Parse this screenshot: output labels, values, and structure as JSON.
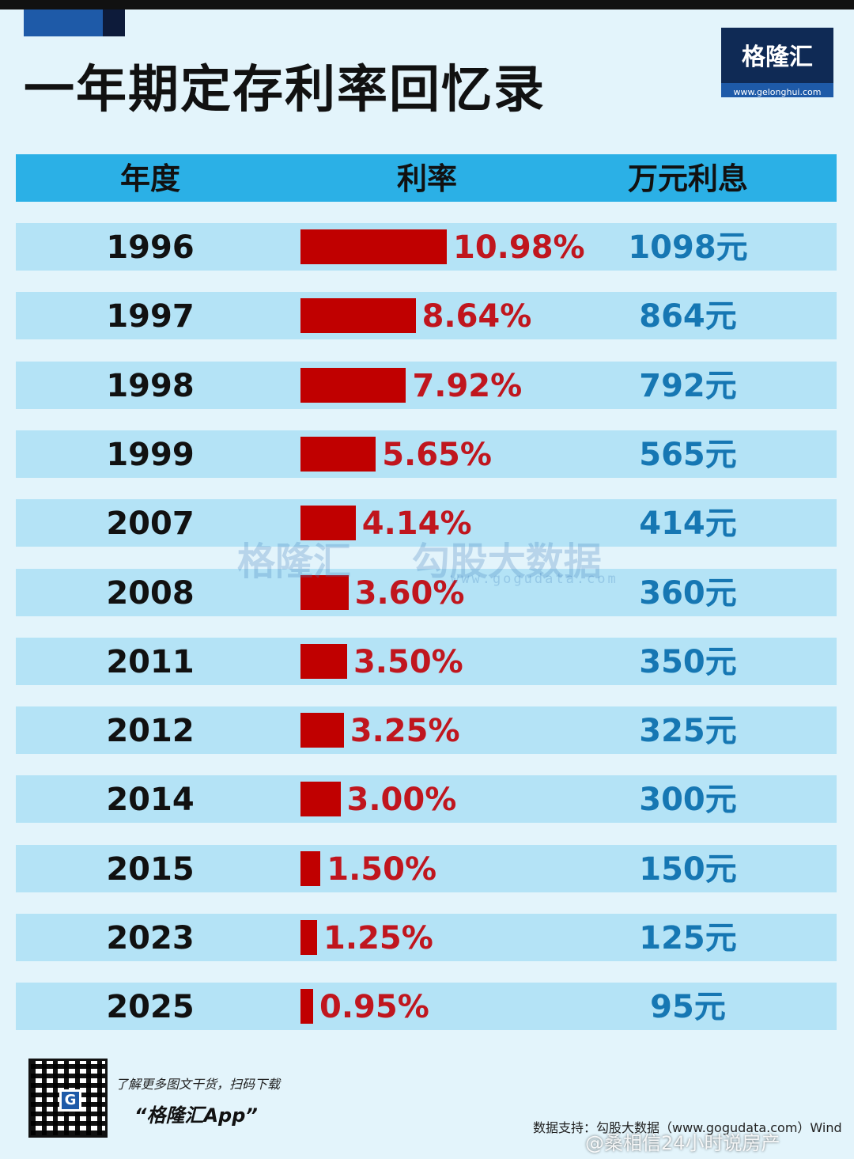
{
  "page": {
    "title": "一年期定存利率回忆录"
  },
  "logo": {
    "name": "格隆汇",
    "url": "www.gelonghui.com"
  },
  "table": {
    "headers": [
      "年度",
      "利率",
      "万元利息"
    ]
  },
  "watermark": {
    "brand": "格隆汇",
    "partner": "勾股大数据",
    "url": "www.gogudata.com"
  },
  "footer": {
    "promo_line": "了解更多图文干货，扫码下载",
    "promo_app": "“格隆汇App”",
    "source": "数据支持：勾股大数据（www.gogudata.com）Wind",
    "weibo_watermark": "@桑相信24小时说房产"
  },
  "colors": {
    "bar": "#c00000",
    "rate_text": "#c0161e",
    "interest_text": "#1677b3",
    "header_bg": "#2bb0e6",
    "row_bg": "#b4e3f6"
  },
  "chart_data": {
    "type": "bar",
    "title": "一年期定存利率回忆录",
    "columns": [
      "年度",
      "利率",
      "万元利息"
    ],
    "categories": [
      "1996",
      "1997",
      "1998",
      "1999",
      "2007",
      "2008",
      "2011",
      "2012",
      "2014",
      "2015",
      "2023",
      "2025"
    ],
    "values": [
      10.98,
      8.64,
      7.92,
      5.65,
      4.14,
      3.6,
      3.5,
      3.25,
      3.0,
      1.5,
      1.25,
      0.95
    ],
    "rate_labels": [
      "10.98%",
      "8.64%",
      "7.92%",
      "5.65%",
      "4.14%",
      "3.60%",
      "3.50%",
      "3.25%",
      "3.00%",
      "1.50%",
      "1.25%",
      "0.95%"
    ],
    "interest_labels": [
      "1098元",
      "864元",
      "792元",
      "565元",
      "414元",
      "360元",
      "350元",
      "325元",
      "300元",
      "150元",
      "125元",
      "95元"
    ],
    "unit": "%"
  }
}
